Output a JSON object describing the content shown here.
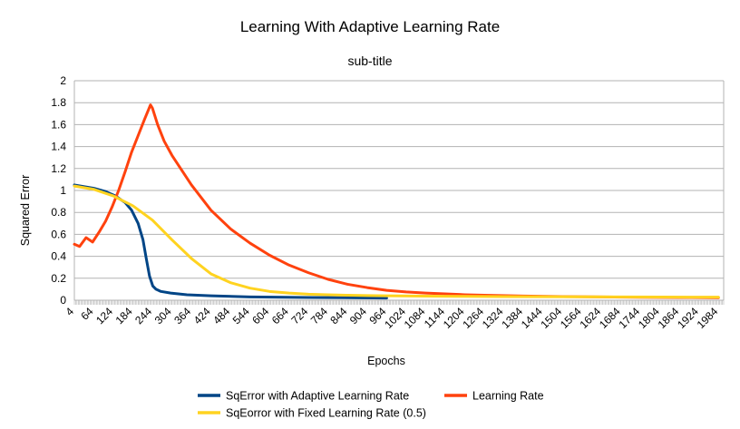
{
  "chart_data": {
    "type": "line",
    "title": "Learning With Adaptive Learning Rate",
    "subtitle": "sub-title",
    "xlabel": "Epochs",
    "ylabel": "Squared Error",
    "ylim": [
      0,
      2
    ],
    "y_ticks": [
      "0",
      "0.2",
      "0.4",
      "0.6",
      "0.8",
      "1",
      "1.2",
      "1.4",
      "1.6",
      "1.8",
      "2"
    ],
    "xlim": [
      4,
      2000
    ],
    "x_ticks": [
      "4",
      "64",
      "124",
      "184",
      "244",
      "304",
      "364",
      "424",
      "484",
      "544",
      "604",
      "664",
      "724",
      "784",
      "844",
      "904",
      "964",
      "1024",
      "1084",
      "1144",
      "1204",
      "1264",
      "1324",
      "1384",
      "1444",
      "1504",
      "1564",
      "1624",
      "1684",
      "1744",
      "1804",
      "1864",
      "1924",
      "1984"
    ],
    "grid": true,
    "legend_position": "bottom",
    "series": [
      {
        "name": "SqError with Adaptive Learning Rate",
        "color": "#004586",
        "x": [
          4,
          64,
          100,
          130,
          160,
          180,
          200,
          215,
          225,
          235,
          245,
          255,
          270,
          300,
          350,
          424,
          544,
          724,
          964
        ],
        "values": [
          1.05,
          1.02,
          0.99,
          0.95,
          0.89,
          0.82,
          0.7,
          0.55,
          0.38,
          0.22,
          0.13,
          0.1,
          0.08,
          0.065,
          0.05,
          0.04,
          0.03,
          0.025,
          0.02
        ]
      },
      {
        "name": "Learning Rate",
        "color": "#ff420e",
        "x": [
          4,
          20,
          40,
          60,
          80,
          100,
          120,
          140,
          160,
          180,
          200,
          220,
          238,
          244,
          260,
          280,
          304,
          364,
          424,
          484,
          544,
          604,
          664,
          724,
          784,
          844,
          904,
          964,
          1024,
          1084,
          1144,
          1204,
          1264,
          1384,
          1504,
          1624,
          1744,
          1864,
          1984
        ],
        "values": [
          0.51,
          0.49,
          0.57,
          0.53,
          0.62,
          0.72,
          0.85,
          1.0,
          1.17,
          1.35,
          1.5,
          1.65,
          1.78,
          1.75,
          1.6,
          1.45,
          1.32,
          1.05,
          0.82,
          0.65,
          0.52,
          0.41,
          0.32,
          0.25,
          0.19,
          0.145,
          0.115,
          0.09,
          0.075,
          0.065,
          0.058,
          0.05,
          0.045,
          0.038,
          0.033,
          0.03,
          0.027,
          0.025,
          0.023
        ]
      },
      {
        "name": "SqEorror with Fixed Learning Rate (0.5)",
        "color": "#ffd320",
        "x": [
          4,
          64,
          124,
          184,
          244,
          304,
          364,
          424,
          484,
          544,
          604,
          664,
          724,
          784,
          844,
          904,
          964,
          1084,
          1204,
          1324,
          1444,
          1564,
          1684,
          1804,
          1924,
          1984
        ],
        "values": [
          1.04,
          1.01,
          0.95,
          0.86,
          0.73,
          0.55,
          0.38,
          0.24,
          0.16,
          0.11,
          0.08,
          0.065,
          0.055,
          0.05,
          0.045,
          0.042,
          0.04,
          0.037,
          0.035,
          0.033,
          0.032,
          0.031,
          0.03,
          0.029,
          0.028,
          0.028
        ]
      }
    ]
  }
}
